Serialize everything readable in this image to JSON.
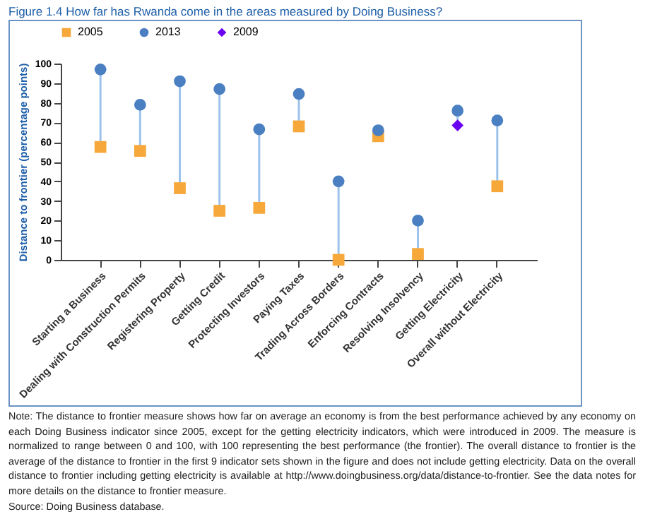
{
  "chart_data": {
    "type": "scatter",
    "title": "Figure 1.4 How far has Rwanda come in the areas measured by Doing Business?",
    "ylabel": "Distance to frontier (percentage points)",
    "categories": [
      "Starting a Business",
      "Dealing with Construction Permits",
      "Registering Property",
      "Getting Credit",
      "Protecting Investors",
      "Paying Taxes",
      "Trading Across Borders",
      "Enforcing Contracts",
      "Resolving Insolvency",
      "Getting Electricity",
      "Overall without Electricity"
    ],
    "series": [
      {
        "name": "2005",
        "color": "#f7a83a",
        "marker": "square",
        "values": [
          57.5,
          55.5,
          36.5,
          25,
          26.5,
          68,
          0,
          63,
          3,
          null,
          37.5
        ]
      },
      {
        "name": "2013",
        "color": "#4a7fc1",
        "marker": "circle",
        "values": [
          97,
          79,
          91,
          87,
          66.5,
          84.5,
          40,
          66,
          20,
          76,
          71
        ]
      },
      {
        "name": "2009",
        "color": "#6a00f0",
        "marker": "diamond",
        "values": [
          null,
          null,
          null,
          null,
          null,
          null,
          null,
          null,
          null,
          68.5,
          null
        ]
      }
    ],
    "ylim": [
      0,
      100
    ],
    "yticks": [
      0,
      10,
      20,
      30,
      40,
      50,
      60,
      70,
      80,
      90,
      100
    ],
    "legend": "top",
    "grid": false,
    "annotations": [
      "Note: The distance to frontier measure shows how far on average an economy is from the best performance achieved by any economy on each Doing Business indicator since 2005, except for the getting electricity indicators, which were introduced in 2009. The measure is normalized to range between 0 and 100, with 100 representing the best performance (the frontier). The overall distance to frontier is the average of the distance to frontier in the first 9 indicator sets shown in the figure and does not include getting electricity. Data on the overall distance to frontier including getting electricity is available at http://www.doingbusiness.org/data/distance-to-frontier. See the data notes for more details on the distance to frontier measure.",
      "Source: Doing Business database."
    ]
  }
}
